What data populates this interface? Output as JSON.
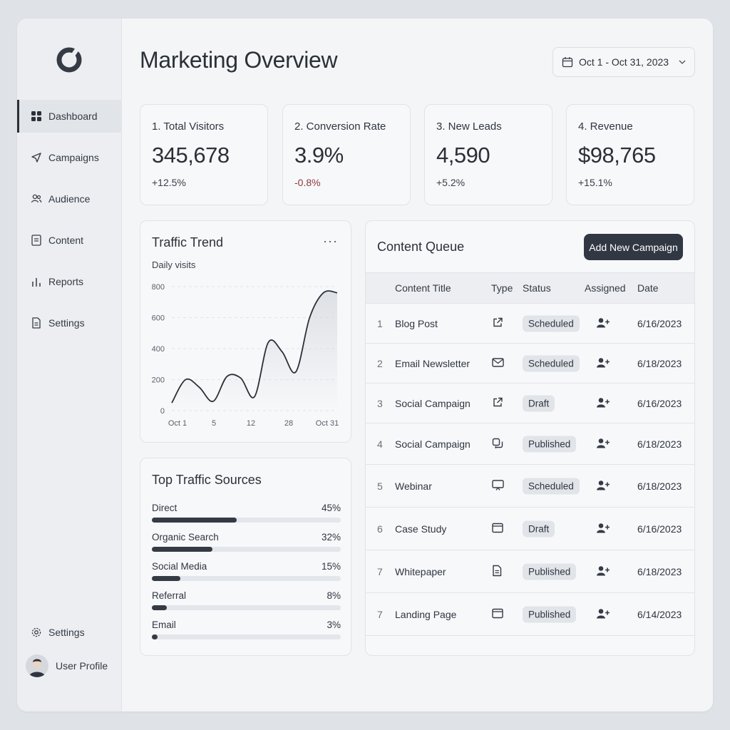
{
  "colors": {
    "accent": "#323843",
    "background": "#f3f5f7",
    "sidebar": "#eceef1",
    "negative": "#8a3b3b"
  },
  "sidebar": {
    "logo": "ring-logo",
    "items": [
      {
        "label": "Dashboard",
        "icon": "grid-icon",
        "active": true
      },
      {
        "label": "Campaigns",
        "icon": "send-icon"
      },
      {
        "label": "Audience",
        "icon": "users-icon"
      },
      {
        "label": "Content",
        "icon": "document-icon"
      },
      {
        "label": "Reports",
        "icon": "bar-chart-icon"
      },
      {
        "label": "Settings",
        "icon": "clipboard-icon"
      }
    ],
    "bottom_settings": "Settings",
    "profile": "User Profile"
  },
  "header": {
    "title": "Marketing Overview",
    "date_range": "Oct 1 - Oct 31, 2023"
  },
  "kpis": [
    {
      "label": "1. Total Visitors",
      "value": "345,678",
      "delta": "+12.5%"
    },
    {
      "label": "2. Conversion Rate",
      "value": "3.9%",
      "delta": "-0.8%"
    },
    {
      "label": "3. New Leads",
      "value": "4,590",
      "delta": "+5.2%"
    },
    {
      "label": "4. Revenue",
      "value": "$98,765",
      "delta": "+15.1%"
    }
  ],
  "traffic": {
    "title": "Traffic Trend",
    "subtitle": "Daily visits",
    "more": "···",
    "chart_data": {
      "type": "area",
      "y_ticks": [
        "800",
        "600",
        "400",
        "200",
        "0"
      ],
      "x_ticks": [
        "Oct 1",
        "5",
        "12",
        "28",
        "Oct 31"
      ],
      "ylim": [
        0,
        800
      ],
      "x": [
        0,
        1,
        2,
        3,
        4,
        5,
        6,
        7,
        8,
        9,
        10,
        11,
        12
      ],
      "values": [
        50,
        200,
        150,
        60,
        220,
        210,
        90,
        440,
        380,
        250,
        600,
        760,
        760
      ],
      "grid": true
    }
  },
  "sources": {
    "title": "Top Traffic Sources",
    "items": [
      {
        "label": "Direct",
        "value": "45%",
        "pct": 45
      },
      {
        "label": "Organic Search",
        "value": "32%",
        "pct": 32
      },
      {
        "label": "Social Media",
        "value": "15%",
        "pct": 15
      },
      {
        "label": "Referral",
        "value": "8%",
        "pct": 8
      },
      {
        "label": "Email",
        "value": "3%",
        "pct": 3
      }
    ]
  },
  "queue": {
    "title": "Content Queue",
    "add_button": "Add New Campaign",
    "columns": [
      "Content Title",
      "Type",
      "Status",
      "Assigned",
      "Date"
    ],
    "rows": [
      {
        "num": "1",
        "title": "Blog Post",
        "type_icon": "external-link-icon",
        "status": "Scheduled",
        "date": "6/16/2023"
      },
      {
        "num": "2",
        "title": "Email Newsletter",
        "type_icon": "mail-icon",
        "status": "Scheduled",
        "date": "6/18/2023"
      },
      {
        "num": "3",
        "title": "Social Campaign",
        "type_icon": "external-link-icon",
        "status": "Draft",
        "date": "6/16/2023"
      },
      {
        "num": "4",
        "title": "Social Campaign",
        "type_icon": "share-icon",
        "status": "Published",
        "date": "6/18/2023"
      },
      {
        "num": "5",
        "title": "Webinar",
        "type_icon": "monitor-icon",
        "status": "Scheduled",
        "date": "6/18/2023"
      },
      {
        "num": "6",
        "title": "Case Study",
        "type_icon": "window-icon",
        "status": "Draft",
        "date": "6/16/2023"
      },
      {
        "num": "7",
        "title": "Whitepaper",
        "type_icon": "file-icon",
        "status": "Published",
        "date": "6/18/2023"
      },
      {
        "num": "7",
        "title": "Landing Page",
        "type_icon": "window-icon",
        "status": "Published",
        "date": "6/14/2023"
      }
    ]
  }
}
